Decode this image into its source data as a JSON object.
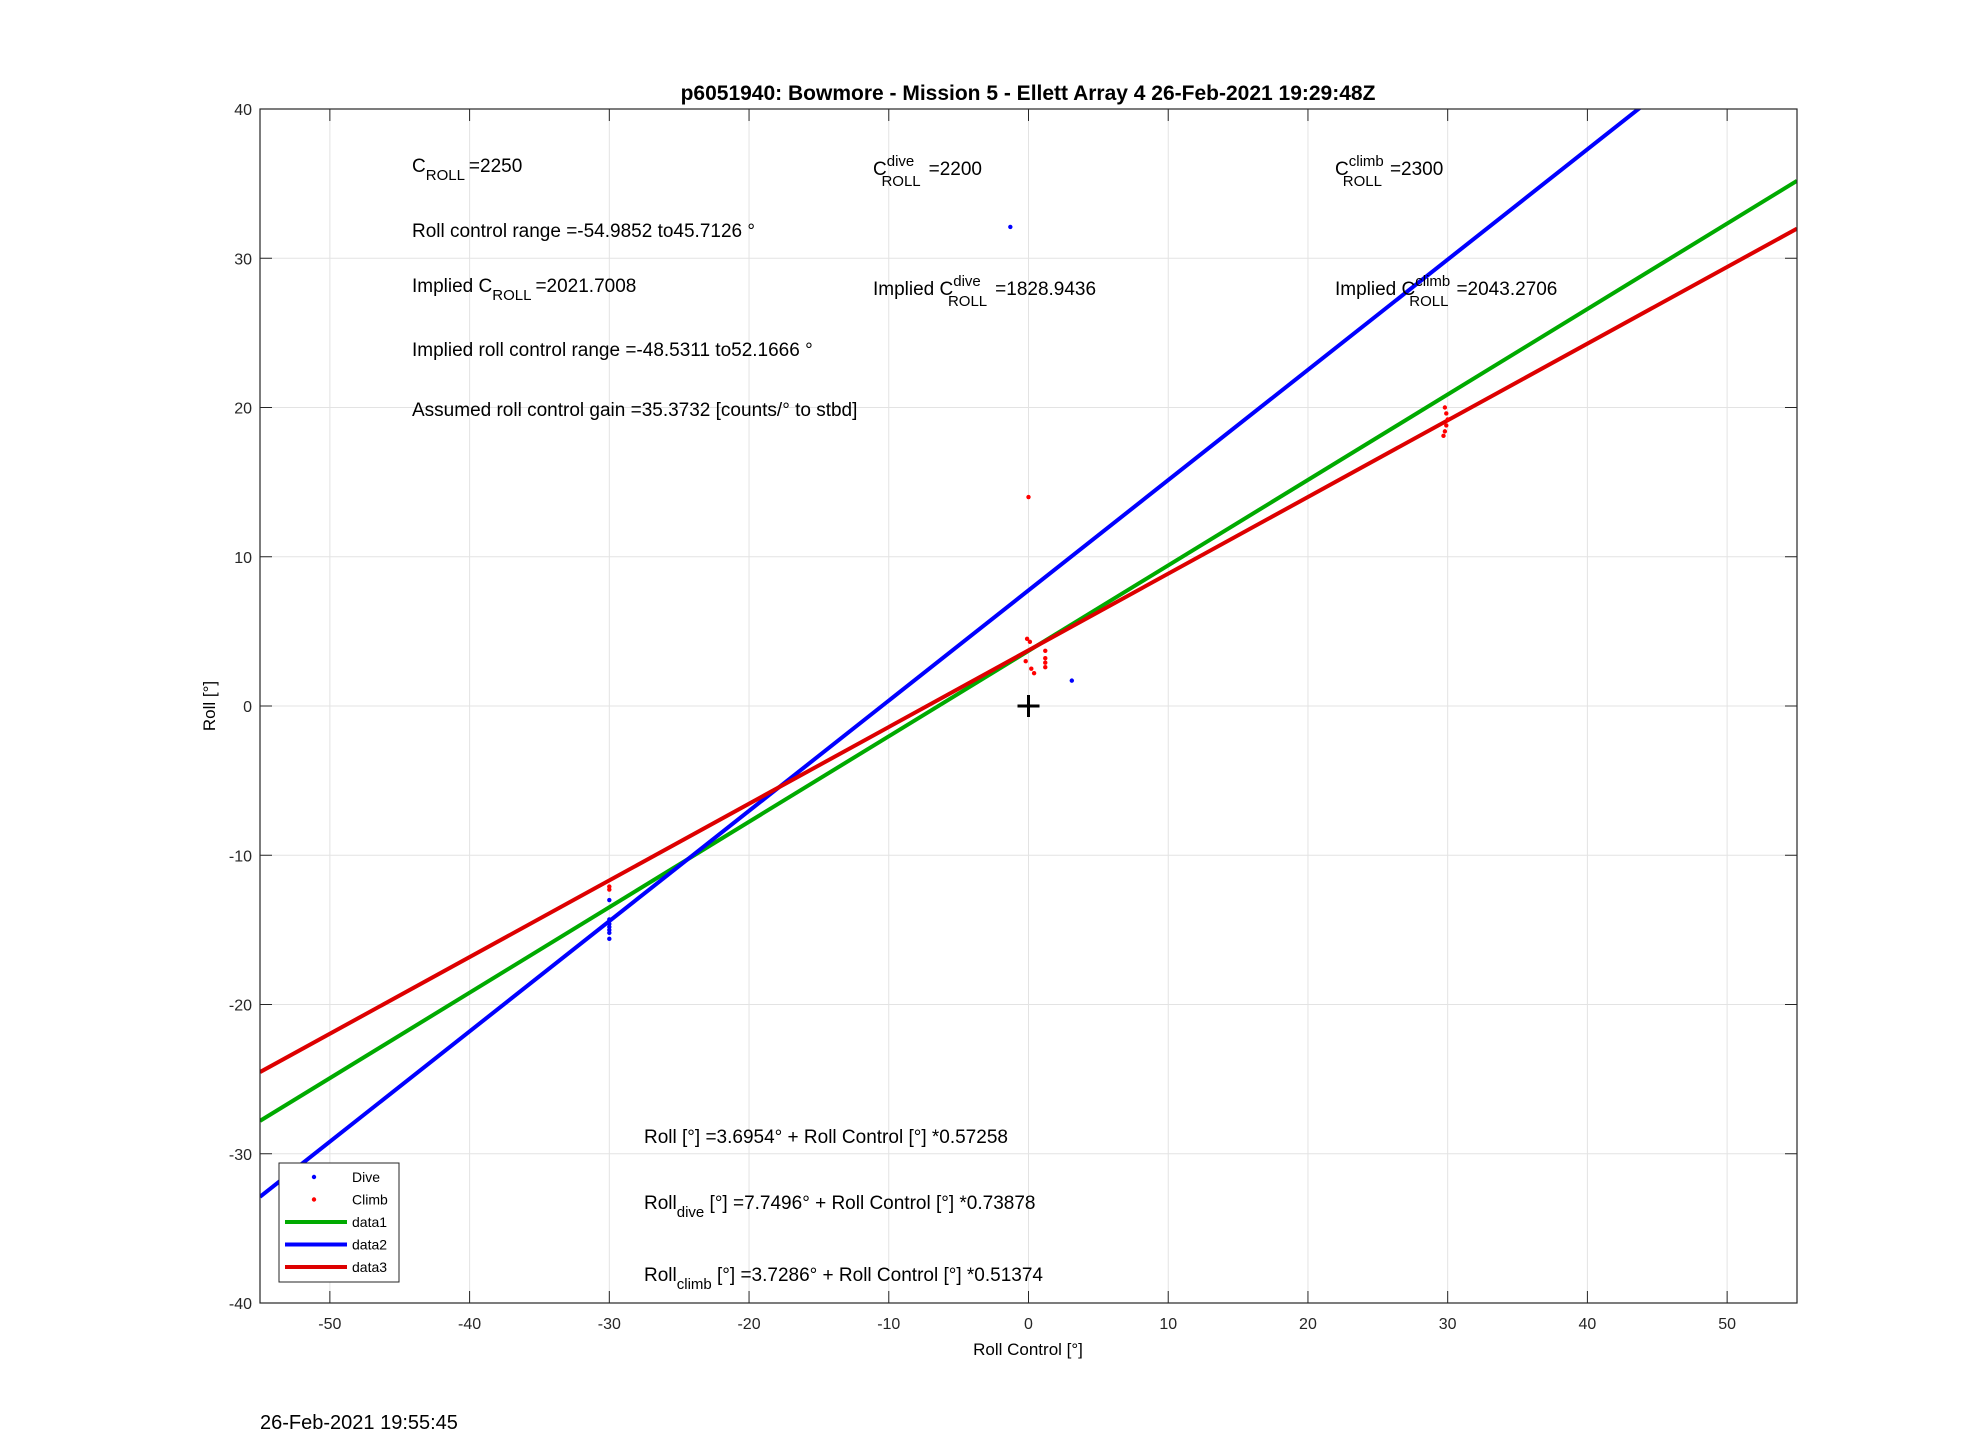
{
  "chart_data": {
    "type": "scatter",
    "title": "p6051940: Bowmore - Mission 5 - Ellett Array 4 26-Feb-2021 19:29:48Z",
    "xlabel": "Roll Control [°]",
    "ylabel": "Roll [°]",
    "xlim": [
      -55,
      55
    ],
    "ylim": [
      -40,
      40
    ],
    "xticks": [
      -50,
      -40,
      -30,
      -20,
      -10,
      0,
      10,
      20,
      30,
      40,
      50
    ],
    "yticks": [
      -40,
      -30,
      -20,
      -10,
      0,
      10,
      20,
      30,
      40
    ],
    "grid": true,
    "legend_position": "bottom-left",
    "series": [
      {
        "name": "Dive",
        "kind": "points",
        "color": "#0000ff",
        "points": [
          [
            -1.3,
            32.1
          ],
          [
            3.1,
            1.7
          ],
          [
            -30,
            -13.0
          ],
          [
            -30,
            -14.3
          ],
          [
            -30,
            -14.6
          ],
          [
            -30,
            -14.8
          ],
          [
            -30,
            -15.0
          ],
          [
            -30,
            -15.2
          ],
          [
            -30,
            -15.6
          ]
        ]
      },
      {
        "name": "Climb",
        "kind": "points",
        "color": "#ff0000",
        "points": [
          [
            0,
            14.0
          ],
          [
            -0.1,
            4.5
          ],
          [
            0.1,
            4.3
          ],
          [
            -0.2,
            3.0
          ],
          [
            0.2,
            2.5
          ],
          [
            0.4,
            2.2
          ],
          [
            1.2,
            3.7
          ],
          [
            1.2,
            3.2
          ],
          [
            1.2,
            2.9
          ],
          [
            1.2,
            2.6
          ],
          [
            29.8,
            20.0
          ],
          [
            29.9,
            19.6
          ],
          [
            30.0,
            19.2
          ],
          [
            29.9,
            18.8
          ],
          [
            29.8,
            18.4
          ],
          [
            29.7,
            18.1
          ],
          [
            -30,
            -12.1
          ],
          [
            -30,
            -12.3
          ]
        ]
      },
      {
        "name": "data1",
        "kind": "line",
        "color": "#00aa00",
        "intercept": 3.6954,
        "slope": 0.57258
      },
      {
        "name": "data2",
        "kind": "line",
        "color": "#0000ff",
        "intercept": 7.7496,
        "slope": 0.73878
      },
      {
        "name": "data3",
        "kind": "line",
        "color": "#dd0000",
        "intercept": 3.7286,
        "slope": 0.51374
      }
    ],
    "origin_marker": [
      0,
      0
    ],
    "annotations": {
      "c_roll": {
        "main": "C",
        "sub": "ROLL",
        "sup": "",
        "value": "=2250"
      },
      "c_roll_dive": {
        "main": "C",
        "sub": "ROLL",
        "sup": "dive",
        "value": "=2200"
      },
      "c_roll_climb": {
        "main": "C",
        "sub": "ROLL",
        "sup": "climb",
        "value": "=2300"
      },
      "range": "Roll control range =-54.9852 to45.7126 °",
      "implied_c": {
        "main": "Implied C",
        "sub": "ROLL",
        "sup": "",
        "value": "=2021.7008"
      },
      "implied_c_dive": {
        "main": "Implied C",
        "sub": "ROLL",
        "sup": "dive",
        "value": "=1828.9436"
      },
      "implied_c_climb": {
        "main": "Implied C",
        "sub": "ROLL",
        "sup": "climb",
        "value": "=2043.2706"
      },
      "implied_range": "Implied roll control range =-48.5311 to52.1666 °",
      "gain": "Assumed roll control gain =35.3732 [counts/° to stbd]",
      "fit_all": {
        "main": "Roll",
        "sub": "",
        "rest": " [°] =3.6954° + Roll Control [°] *0.57258"
      },
      "fit_dive": {
        "main": "Roll",
        "sub": "dive",
        "rest": " [°] =7.7496° + Roll Control [°] *0.73878"
      },
      "fit_climb": {
        "main": "Roll",
        "sub": "climb",
        "rest": " [°] =3.7286° + Roll Control [°] *0.51374"
      }
    }
  },
  "footer": {
    "timestamp": "26-Feb-2021 19:55:45"
  }
}
